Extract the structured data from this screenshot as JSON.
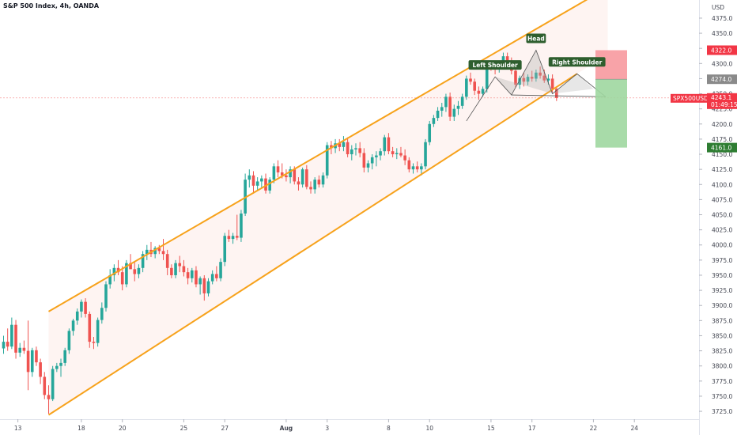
{
  "chart_title": "S&P 500 Index, 4h, OANDA",
  "currency": "USD",
  "chart_data": {
    "type": "candlestick",
    "title": "S&P 500 Index, 4h, OANDA",
    "y_axis": {
      "label": "USD",
      "range": [
        3712,
        4405
      ],
      "ticks": [
        3725,
        3750,
        3775,
        3800,
        3825,
        3850,
        3875,
        3900,
        3925,
        3950,
        3975,
        4000,
        4025,
        4050,
        4075,
        4100,
        4125,
        4150,
        4175,
        4200,
        4225,
        4250,
        4275,
        4300,
        4325,
        4350,
        4375
      ],
      "tick_labels": [
        "3725.0",
        "3750.0",
        "3775.0",
        "3800.0",
        "3825.0",
        "3850.0",
        "3875.0",
        "3900.0",
        "3925.0",
        "3950.0",
        "3975.0",
        "4000.0",
        "4025.0",
        "4050.0",
        "4075.0",
        "4100.0",
        "4125.0",
        "4150.0",
        "4175.0",
        "4200.0",
        "4225.0",
        "4250.0",
        "4275.0",
        "4300.0",
        "4325.0",
        "4350.0",
        "4375.0"
      ]
    },
    "x_axis": {
      "range": [
        0,
        140
      ],
      "ticks": [
        {
          "label": "13",
          "bar": 3.5
        },
        {
          "label": "18",
          "bar": 19
        },
        {
          "label": "20",
          "bar": 29
        },
        {
          "label": "25",
          "bar": 44
        },
        {
          "label": "27",
          "bar": 54
        },
        {
          "label": "Aug",
          "bar": 69
        },
        {
          "label": "3",
          "bar": 79
        },
        {
          "label": "8",
          "bar": 94
        },
        {
          "label": "10",
          "bar": 104
        },
        {
          "label": "15",
          "bar": 119
        },
        {
          "label": "17",
          "bar": 129
        },
        {
          "label": "22",
          "bar": 144
        },
        {
          "label": "24",
          "bar": 154
        }
      ]
    },
    "candles": [
      {
        "o": 3829,
        "h": 3850,
        "l": 3820,
        "c": 3840
      },
      {
        "o": 3840,
        "h": 3862,
        "l": 3825,
        "c": 3832
      },
      {
        "o": 3832,
        "h": 3880,
        "l": 3828,
        "c": 3868
      },
      {
        "o": 3868,
        "h": 3876,
        "l": 3812,
        "c": 3822
      },
      {
        "o": 3822,
        "h": 3838,
        "l": 3815,
        "c": 3830
      },
      {
        "o": 3830,
        "h": 3842,
        "l": 3820,
        "c": 3825
      },
      {
        "o": 3825,
        "h": 3875,
        "l": 3760,
        "c": 3790
      },
      {
        "o": 3790,
        "h": 3830,
        "l": 3782,
        "c": 3826
      },
      {
        "o": 3826,
        "h": 3832,
        "l": 3800,
        "c": 3806
      },
      {
        "o": 3806,
        "h": 3812,
        "l": 3770,
        "c": 3782
      },
      {
        "o": 3782,
        "h": 3790,
        "l": 3745,
        "c": 3752
      },
      {
        "o": 3752,
        "h": 3768,
        "l": 3721,
        "c": 3745
      },
      {
        "o": 3745,
        "h": 3800,
        "l": 3742,
        "c": 3795
      },
      {
        "o": 3795,
        "h": 3805,
        "l": 3790,
        "c": 3800
      },
      {
        "o": 3800,
        "h": 3812,
        "l": 3782,
        "c": 3805
      },
      {
        "o": 3805,
        "h": 3830,
        "l": 3800,
        "c": 3826
      },
      {
        "o": 3826,
        "h": 3862,
        "l": 3820,
        "c": 3858
      },
      {
        "o": 3858,
        "h": 3878,
        "l": 3850,
        "c": 3875
      },
      {
        "o": 3875,
        "h": 3895,
        "l": 3868,
        "c": 3890
      },
      {
        "o": 3890,
        "h": 3910,
        "l": 3880,
        "c": 3906
      },
      {
        "o": 3906,
        "h": 3912,
        "l": 3880,
        "c": 3886
      },
      {
        "o": 3886,
        "h": 3890,
        "l": 3830,
        "c": 3840
      },
      {
        "o": 3840,
        "h": 3848,
        "l": 3828,
        "c": 3838
      },
      {
        "o": 3838,
        "h": 3880,
        "l": 3832,
        "c": 3876
      },
      {
        "o": 3876,
        "h": 3905,
        "l": 3870,
        "c": 3896
      },
      {
        "o": 3896,
        "h": 3940,
        "l": 3890,
        "c": 3935
      },
      {
        "o": 3935,
        "h": 3960,
        "l": 3928,
        "c": 3950
      },
      {
        "o": 3950,
        "h": 3968,
        "l": 3940,
        "c": 3962
      },
      {
        "o": 3962,
        "h": 3975,
        "l": 3950,
        "c": 3955
      },
      {
        "o": 3955,
        "h": 3965,
        "l": 3925,
        "c": 3935
      },
      {
        "o": 3935,
        "h": 3975,
        "l": 3930,
        "c": 3970
      },
      {
        "o": 3970,
        "h": 3985,
        "l": 3960,
        "c": 3960
      },
      {
        "o": 3960,
        "h": 3972,
        "l": 3940,
        "c": 3952
      },
      {
        "o": 3952,
        "h": 3968,
        "l": 3945,
        "c": 3962
      },
      {
        "o": 3962,
        "h": 3990,
        "l": 3955,
        "c": 3985
      },
      {
        "o": 3985,
        "h": 4000,
        "l": 3975,
        "c": 3992
      },
      {
        "o": 3992,
        "h": 4005,
        "l": 3980,
        "c": 3985
      },
      {
        "o": 3985,
        "h": 3998,
        "l": 3978,
        "c": 3995
      },
      {
        "o": 3995,
        "h": 4000,
        "l": 3985,
        "c": 3990
      },
      {
        "o": 3990,
        "h": 4010,
        "l": 3975,
        "c": 3985
      },
      {
        "o": 3985,
        "h": 3992,
        "l": 3950,
        "c": 3962
      },
      {
        "o": 3962,
        "h": 3968,
        "l": 3945,
        "c": 3950
      },
      {
        "o": 3950,
        "h": 3975,
        "l": 3945,
        "c": 3970
      },
      {
        "o": 3970,
        "h": 3982,
        "l": 3955,
        "c": 3965
      },
      {
        "o": 3965,
        "h": 3975,
        "l": 3948,
        "c": 3955
      },
      {
        "o": 3955,
        "h": 3962,
        "l": 3935,
        "c": 3945
      },
      {
        "o": 3945,
        "h": 3962,
        "l": 3938,
        "c": 3958
      },
      {
        "o": 3958,
        "h": 3965,
        "l": 3930,
        "c": 3935
      },
      {
        "o": 3935,
        "h": 3948,
        "l": 3918,
        "c": 3945
      },
      {
        "o": 3945,
        "h": 3950,
        "l": 3908,
        "c": 3920
      },
      {
        "o": 3920,
        "h": 3945,
        "l": 3915,
        "c": 3940
      },
      {
        "o": 3940,
        "h": 3958,
        "l": 3935,
        "c": 3952
      },
      {
        "o": 3952,
        "h": 3965,
        "l": 3940,
        "c": 3945
      },
      {
        "o": 3945,
        "h": 3978,
        "l": 3940,
        "c": 3972
      },
      {
        "o": 3972,
        "h": 4020,
        "l": 3965,
        "c": 4015
      },
      {
        "o": 4015,
        "h": 4025,
        "l": 4005,
        "c": 4010
      },
      {
        "o": 4010,
        "h": 4020,
        "l": 4002,
        "c": 4015
      },
      {
        "o": 4015,
        "h": 4050,
        "l": 4008,
        "c": 4012
      },
      {
        "o": 4012,
        "h": 4058,
        "l": 4005,
        "c": 4052
      },
      {
        "o": 4052,
        "h": 4118,
        "l": 4048,
        "c": 4108
      },
      {
        "o": 4108,
        "h": 4125,
        "l": 4095,
        "c": 4115
      },
      {
        "o": 4115,
        "h": 4122,
        "l": 4085,
        "c": 4098
      },
      {
        "o": 4098,
        "h": 4112,
        "l": 4090,
        "c": 4105
      },
      {
        "o": 4105,
        "h": 4115,
        "l": 4095,
        "c": 4110
      },
      {
        "o": 4110,
        "h": 4118,
        "l": 4085,
        "c": 4090
      },
      {
        "o": 4090,
        "h": 4112,
        "l": 4085,
        "c": 4108
      },
      {
        "o": 4108,
        "h": 4135,
        "l": 4102,
        "c": 4130
      },
      {
        "o": 4130,
        "h": 4140,
        "l": 4112,
        "c": 4120
      },
      {
        "o": 4120,
        "h": 4135,
        "l": 4110,
        "c": 4115
      },
      {
        "o": 4115,
        "h": 4125,
        "l": 4105,
        "c": 4112
      },
      {
        "o": 4112,
        "h": 4130,
        "l": 4102,
        "c": 4125
      },
      {
        "o": 4125,
        "h": 4130,
        "l": 4100,
        "c": 4105
      },
      {
        "o": 4105,
        "h": 4112,
        "l": 4090,
        "c": 4100
      },
      {
        "o": 4100,
        "h": 4128,
        "l": 4095,
        "c": 4125
      },
      {
        "o": 4125,
        "h": 4132,
        "l": 4092,
        "c": 4096
      },
      {
        "o": 4096,
        "h": 4105,
        "l": 4085,
        "c": 4092
      },
      {
        "o": 4092,
        "h": 4112,
        "l": 4085,
        "c": 4108
      },
      {
        "o": 4108,
        "h": 4115,
        "l": 4095,
        "c": 4100
      },
      {
        "o": 4100,
        "h": 4120,
        "l": 4095,
        "c": 4115
      },
      {
        "o": 4115,
        "h": 4170,
        "l": 4110,
        "c": 4165
      },
      {
        "o": 4165,
        "h": 4172,
        "l": 4150,
        "c": 4160
      },
      {
        "o": 4160,
        "h": 4175,
        "l": 4152,
        "c": 4168
      },
      {
        "o": 4168,
        "h": 4175,
        "l": 4155,
        "c": 4162
      },
      {
        "o": 4162,
        "h": 4180,
        "l": 4155,
        "c": 4170
      },
      {
        "o": 4170,
        "h": 4178,
        "l": 4145,
        "c": 4150
      },
      {
        "o": 4150,
        "h": 4165,
        "l": 4140,
        "c": 4158
      },
      {
        "o": 4158,
        "h": 4168,
        "l": 4148,
        "c": 4160
      },
      {
        "o": 4160,
        "h": 4170,
        "l": 4145,
        "c": 4152
      },
      {
        "o": 4152,
        "h": 4160,
        "l": 4120,
        "c": 4128
      },
      {
        "o": 4128,
        "h": 4140,
        "l": 4120,
        "c": 4135
      },
      {
        "o": 4135,
        "h": 4150,
        "l": 4125,
        "c": 4145
      },
      {
        "o": 4145,
        "h": 4155,
        "l": 4130,
        "c": 4148
      },
      {
        "o": 4148,
        "h": 4160,
        "l": 4140,
        "c": 4155
      },
      {
        "o": 4155,
        "h": 4182,
        "l": 4148,
        "c": 4178
      },
      {
        "o": 4178,
        "h": 4185,
        "l": 4150,
        "c": 4155
      },
      {
        "o": 4155,
        "h": 4162,
        "l": 4145,
        "c": 4150
      },
      {
        "o": 4150,
        "h": 4160,
        "l": 4142,
        "c": 4152
      },
      {
        "o": 4152,
        "h": 4162,
        "l": 4145,
        "c": 4148
      },
      {
        "o": 4148,
        "h": 4158,
        "l": 4132,
        "c": 4140
      },
      {
        "o": 4140,
        "h": 4145,
        "l": 4120,
        "c": 4125
      },
      {
        "o": 4125,
        "h": 4135,
        "l": 4118,
        "c": 4130
      },
      {
        "o": 4130,
        "h": 4138,
        "l": 4120,
        "c": 4125
      },
      {
        "o": 4125,
        "h": 4135,
        "l": 4115,
        "c": 4130
      },
      {
        "o": 4130,
        "h": 4175,
        "l": 4125,
        "c": 4170
      },
      {
        "o": 4170,
        "h": 4205,
        "l": 4165,
        "c": 4200
      },
      {
        "o": 4200,
        "h": 4215,
        "l": 4195,
        "c": 4210
      },
      {
        "o": 4210,
        "h": 4228,
        "l": 4205,
        "c": 4222
      },
      {
        "o": 4222,
        "h": 4235,
        "l": 4212,
        "c": 4228
      },
      {
        "o": 4228,
        "h": 4250,
        "l": 4220,
        "c": 4245
      },
      {
        "o": 4245,
        "h": 4252,
        "l": 4205,
        "c": 4212
      },
      {
        "o": 4212,
        "h": 4232,
        "l": 4205,
        "c": 4225
      },
      {
        "o": 4225,
        "h": 4238,
        "l": 4215,
        "c": 4230
      },
      {
        "o": 4230,
        "h": 4250,
        "l": 4225,
        "c": 4245
      },
      {
        "o": 4245,
        "h": 4280,
        "l": 4240,
        "c": 4275
      },
      {
        "o": 4275,
        "h": 4285,
        "l": 4265,
        "c": 4270
      },
      {
        "o": 4270,
        "h": 4275,
        "l": 4248,
        "c": 4255
      },
      {
        "o": 4255,
        "h": 4262,
        "l": 4240,
        "c": 4250
      },
      {
        "o": 4250,
        "h": 4262,
        "l": 4245,
        "c": 4258
      },
      {
        "o": 4258,
        "h": 4300,
        "l": 4252,
        "c": 4295
      },
      {
        "o": 4295,
        "h": 4302,
        "l": 4288,
        "c": 4292
      },
      {
        "o": 4292,
        "h": 4298,
        "l": 4282,
        "c": 4290
      },
      {
        "o": 4290,
        "h": 4305,
        "l": 4285,
        "c": 4300
      },
      {
        "o": 4300,
        "h": 4318,
        "l": 4295,
        "c": 4312
      },
      {
        "o": 4312,
        "h": 4318,
        "l": 4295,
        "c": 4305
      },
      {
        "o": 4305,
        "h": 4310,
        "l": 4282,
        "c": 4288
      },
      {
        "o": 4288,
        "h": 4298,
        "l": 4260,
        "c": 4265
      },
      {
        "o": 4265,
        "h": 4280,
        "l": 4258,
        "c": 4276
      },
      {
        "o": 4276,
        "h": 4285,
        "l": 4262,
        "c": 4270
      },
      {
        "o": 4270,
        "h": 4282,
        "l": 4264,
        "c": 4278
      },
      {
        "o": 4278,
        "h": 4288,
        "l": 4270,
        "c": 4275
      },
      {
        "o": 4275,
        "h": 4290,
        "l": 4270,
        "c": 4285
      },
      {
        "o": 4285,
        "h": 4295,
        "l": 4275,
        "c": 4280
      },
      {
        "o": 4280,
        "h": 4290,
        "l": 4268,
        "c": 4272
      },
      {
        "o": 4272,
        "h": 4282,
        "l": 4265,
        "c": 4275
      },
      {
        "o": 4275,
        "h": 4282,
        "l": 4252,
        "c": 4258
      },
      {
        "o": 4258,
        "h": 4262,
        "l": 4238,
        "c": 4243
      }
    ],
    "channel": {
      "upper": [
        {
          "bar": 11,
          "price": 3890
        },
        {
          "bar": 143,
          "price": 4408
        }
      ],
      "lower": [
        {
          "bar": 11,
          "price": 3719
        },
        {
          "bar": 140,
          "price": 4283
        }
      ]
    },
    "annotations": [
      {
        "text": "Left Shoulder"
      },
      {
        "text": "Head"
      },
      {
        "text": "Right Shoulder"
      }
    ],
    "position": {
      "entry": 4274.0,
      "stop": 4322.0,
      "target": 4161.0,
      "labels": [
        "4322.0",
        "4274.0",
        "4161.0"
      ]
    },
    "last_price": {
      "symbol": "SPX500USD",
      "price": "4243.1",
      "countdown": "01:49:15",
      "value": 4243.1
    },
    "colors": {
      "up": "#26a69a",
      "down": "#ef5350",
      "channel": "#f7a21b",
      "stop_fill": "#f7999e",
      "target_fill": "#9fd7a0",
      "annotation_bg": "#2e5e2e",
      "price_tag": "#f23645",
      "target_tag": "#2e7d32"
    },
    "grid": false,
    "legend": "none"
  }
}
